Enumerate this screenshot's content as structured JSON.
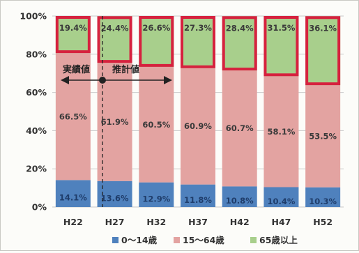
{
  "chart_data": {
    "type": "bar",
    "stacked": true,
    "percent": true,
    "categories": [
      "H22",
      "H27",
      "H32",
      "H37",
      "H42",
      "H47",
      "H52"
    ],
    "series": [
      {
        "name": "0～14歳",
        "color": "#4f81bd",
        "values": [
          14.1,
          13.6,
          12.9,
          11.8,
          10.8,
          10.4,
          10.3
        ],
        "labels": [
          "14.1%",
          "13.6%",
          "12.9%",
          "11.8%",
          "10.8%",
          "10.4%",
          "10.3%"
        ]
      },
      {
        "name": "15～64歳",
        "color": "#e3a3a1",
        "values": [
          66.5,
          61.9,
          60.5,
          60.9,
          60.7,
          58.1,
          53.5
        ],
        "labels": [
          "66.5%",
          "61.9%",
          "60.5%",
          "60.9%",
          "60.7%",
          "58.1%",
          "53.5%"
        ]
      },
      {
        "name": "65歳以上",
        "color": "#a8cf8c",
        "values": [
          19.4,
          24.4,
          26.6,
          27.3,
          28.4,
          31.5,
          36.1
        ],
        "labels": [
          "19.4%",
          "24.4%",
          "26.6%",
          "27.3%",
          "28.4%",
          "31.5%",
          "36.1%"
        ]
      }
    ],
    "ylim": [
      0,
      100
    ],
    "yticks": [
      "0%",
      "20%",
      "40%",
      "60%",
      "80%",
      "100%"
    ],
    "grid": true,
    "legend_position": "bottom",
    "highlight_series": "65歳以上",
    "highlight_color": "#d6213e",
    "annotations": {
      "actual_label": "実績値",
      "projected_label": "推計値"
    }
  }
}
